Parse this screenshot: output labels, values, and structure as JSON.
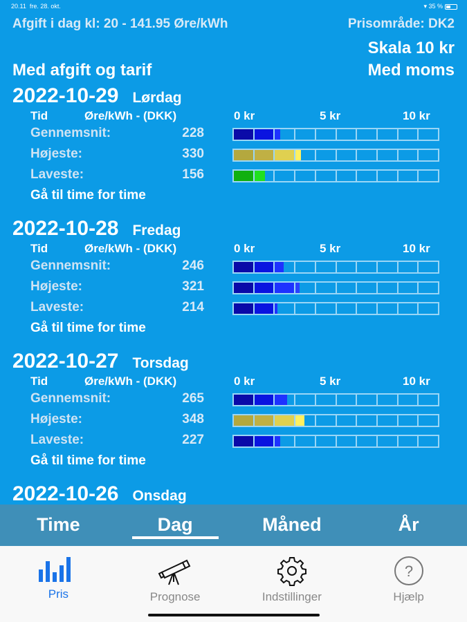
{
  "status": {
    "time": "20.11",
    "date": "fre. 28. okt.",
    "battery": "35 %"
  },
  "header": {
    "afgift": "Afgift i dag kl: 20 - 141.95 Øre/kWh",
    "prisomraade": "Prisområde: DK2",
    "skala": "Skala 10 kr",
    "left_mode": "Med afgift og tarif",
    "right_mode": "Med moms"
  },
  "columns": {
    "tid": "Tid",
    "unit": "Øre/kWh - (DKK)",
    "scale": [
      "0 kr",
      "5 kr",
      "10 kr"
    ]
  },
  "scale_max_kr": 10,
  "days": [
    {
      "date": "2022-10-29",
      "weekday": "Lørdag",
      "rows": [
        {
          "label": "Gennemsnit:",
          "value": 228,
          "colors": [
            "#0a0aa8",
            "#0a14e0",
            "#1e32ff"
          ]
        },
        {
          "label": "Højeste:",
          "value": 330,
          "colors": [
            "#b4a83e",
            "#c0b044",
            "#e0d050",
            "#fff060"
          ]
        },
        {
          "label": "Laveste:",
          "value": 156,
          "colors": [
            "#10b010",
            "#20e020"
          ]
        }
      ],
      "goto": "Gå til time for time"
    },
    {
      "date": "2022-10-28",
      "weekday": "Fredag",
      "rows": [
        {
          "label": "Gennemsnit:",
          "value": 246,
          "colors": [
            "#0a0aa8",
            "#0a14e0",
            "#1e32ff"
          ]
        },
        {
          "label": "Højeste:",
          "value": 321,
          "colors": [
            "#0a0aa8",
            "#0a14e0",
            "#1e32ff",
            "#2a40ff"
          ]
        },
        {
          "label": "Laveste:",
          "value": 214,
          "colors": [
            "#0a0aa8",
            "#0a14e0",
            "#1e32ff"
          ]
        }
      ],
      "goto": "Gå til time for time"
    },
    {
      "date": "2022-10-27",
      "weekday": "Torsdag",
      "rows": [
        {
          "label": "Gennemsnit:",
          "value": 265,
          "colors": [
            "#0a0aa8",
            "#0a14e0",
            "#1e32ff"
          ]
        },
        {
          "label": "Højeste:",
          "value": 348,
          "colors": [
            "#b4a83e",
            "#c0b044",
            "#e0d050",
            "#fff060"
          ]
        },
        {
          "label": "Laveste:",
          "value": 227,
          "colors": [
            "#0a0aa8",
            "#0a14e0",
            "#1e32ff"
          ]
        }
      ],
      "goto": "Gå til time for time"
    },
    {
      "date": "2022-10-26",
      "weekday": "Onsdag",
      "rows": [],
      "goto": ""
    }
  ],
  "tabs": [
    {
      "label": "Time"
    },
    {
      "label": "Dag",
      "selected": true
    },
    {
      "label": "Måned"
    },
    {
      "label": "År"
    }
  ],
  "nav": [
    {
      "label": "Pris",
      "icon": "bar-chart-icon",
      "active": true
    },
    {
      "label": "Prognose",
      "icon": "telescope-icon"
    },
    {
      "label": "Indstillinger",
      "icon": "gear-icon"
    },
    {
      "label": "Hjælp",
      "icon": "help-icon"
    }
  ],
  "colors": {
    "background": "#0c9be6",
    "tabbar": "#3f8fb8",
    "active_nav": "#1a73e8"
  }
}
